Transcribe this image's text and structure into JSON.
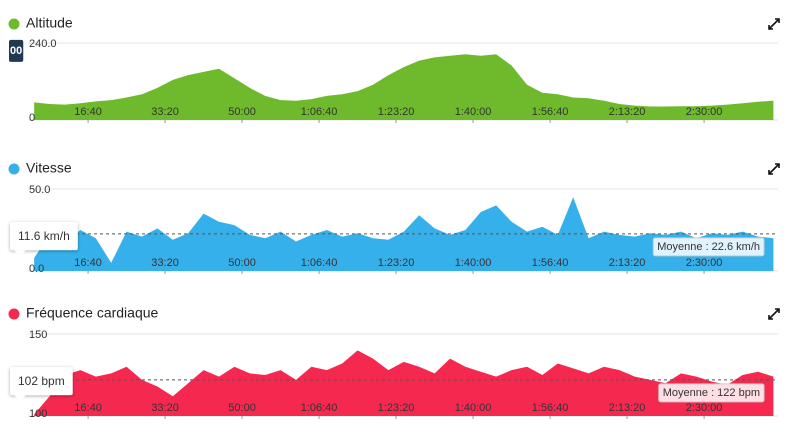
{
  "chart_data": [
    {
      "type": "area",
      "title": "Altitude",
      "color": "#6fba2c",
      "cursor_label": "00",
      "x": [
        300,
        500,
        700,
        900,
        1100,
        1300,
        1500,
        1700,
        1900,
        2100,
        2300,
        2500,
        2700,
        2900,
        3100,
        3300,
        3500,
        3700,
        3900,
        4100,
        4300,
        4500,
        4700,
        4900,
        5100,
        5300,
        5500,
        5700,
        5900,
        6100,
        6300,
        6500,
        6700,
        6900,
        7100,
        7300,
        7500,
        7700,
        7900,
        8100,
        8300,
        8500,
        8700,
        8900,
        9100,
        9300,
        9500,
        9700,
        9900
      ],
      "values": [
        55,
        50,
        48,
        52,
        58,
        62,
        70,
        80,
        100,
        125,
        140,
        150,
        160,
        130,
        100,
        75,
        62,
        60,
        65,
        75,
        80,
        90,
        110,
        140,
        165,
        185,
        195,
        200,
        205,
        200,
        205,
        170,
        110,
        85,
        80,
        70,
        68,
        60,
        50,
        45,
        42,
        42,
        43,
        43,
        45,
        48,
        52,
        57,
        60
      ],
      "xlim": [
        220,
        9960
      ],
      "xticks": [
        {
          "value": 1000,
          "label": "16:40"
        },
        {
          "value": 2000,
          "label": "33:20"
        },
        {
          "value": 3000,
          "label": "50:00"
        },
        {
          "value": 4000,
          "label": "1:06:40"
        },
        {
          "value": 5000,
          "label": "1:23:20"
        },
        {
          "value": 6000,
          "label": "1:40:00"
        },
        {
          "value": 7000,
          "label": "1:56:40"
        },
        {
          "value": 8000,
          "label": "2:13:20"
        },
        {
          "value": 9000,
          "label": "2:30:00"
        }
      ],
      "ylim": [
        0,
        240
      ],
      "yticks": [
        0,
        {
          "value": 240,
          "label": "240.0"
        }
      ],
      "grid": true
    },
    {
      "type": "area",
      "title": "Vitesse",
      "color": "#35b0ea",
      "cursor_label": "11.6 km/h",
      "average": {
        "value": 22.6,
        "label": "Moyenne : 22.6 km/h"
      },
      "x": [
        300,
        500,
        700,
        900,
        1100,
        1300,
        1500,
        1700,
        1900,
        2100,
        2300,
        2500,
        2700,
        2900,
        3100,
        3300,
        3500,
        3700,
        3900,
        4100,
        4300,
        4500,
        4700,
        4900,
        5100,
        5300,
        5500,
        5700,
        5900,
        6100,
        6300,
        6500,
        6700,
        6900,
        7100,
        7300,
        7500,
        7700,
        7900,
        8100,
        8300,
        8500,
        8700,
        8900,
        9100,
        9300,
        9500,
        9700,
        9900
      ],
      "values": [
        8,
        22,
        18,
        25,
        20,
        5,
        24,
        21,
        26,
        19,
        23,
        35,
        30,
        28,
        22,
        20,
        24,
        18,
        22,
        25,
        21,
        23,
        20,
        19,
        24,
        34,
        26,
        22,
        25,
        36,
        40,
        30,
        24,
        27,
        22,
        45,
        20,
        24,
        22,
        21,
        23,
        22,
        24,
        20,
        23,
        22,
        24,
        21,
        20
      ],
      "xlim": [
        220,
        9960
      ],
      "xticks": [
        {
          "value": 1000,
          "label": "16:40"
        },
        {
          "value": 2000,
          "label": "33:20"
        },
        {
          "value": 3000,
          "label": "50:00"
        },
        {
          "value": 4000,
          "label": "1:06:40"
        },
        {
          "value": 5000,
          "label": "1:23:20"
        },
        {
          "value": 6000,
          "label": "1:40:00"
        },
        {
          "value": 7000,
          "label": "1:56:40"
        },
        {
          "value": 8000,
          "label": "2:13:20"
        },
        {
          "value": 9000,
          "label": "2:30:00"
        }
      ],
      "ylim": [
        0,
        50
      ],
      "yticks": [
        {
          "value": 0,
          "label": "0.0"
        },
        {
          "value": 50,
          "label": "50.0"
        }
      ],
      "grid": true
    },
    {
      "type": "area",
      "title": "Fréquence cardiaque",
      "color": "#f5294f",
      "cursor_label": "102 bpm",
      "average": {
        "value": 122,
        "label": "Moyenne : 122 bpm"
      },
      "x": [
        300,
        500,
        700,
        900,
        1100,
        1300,
        1500,
        1700,
        1900,
        2100,
        2300,
        2500,
        2700,
        2900,
        3100,
        3300,
        3500,
        3700,
        3900,
        4100,
        4300,
        4500,
        4700,
        4900,
        5100,
        5300,
        5500,
        5700,
        5900,
        6100,
        6300,
        6500,
        6700,
        6900,
        7100,
        7300,
        7500,
        7700,
        7900,
        8100,
        8300,
        8500,
        8700,
        8900,
        9100,
        9300,
        9500,
        9700,
        9900
      ],
      "values": [
        101,
        112,
        125,
        128,
        124,
        126,
        130,
        122,
        118,
        112,
        120,
        128,
        124,
        130,
        126,
        125,
        128,
        122,
        130,
        128,
        132,
        140,
        135,
        128,
        133,
        130,
        126,
        135,
        130,
        127,
        124,
        128,
        130,
        125,
        132,
        129,
        126,
        130,
        128,
        124,
        122,
        120,
        126,
        124,
        121,
        119,
        125,
        127,
        124
      ],
      "xlim": [
        220,
        9960
      ],
      "xticks": [
        {
          "value": 1000,
          "label": "16:40"
        },
        {
          "value": 2000,
          "label": "33:20"
        },
        {
          "value": 3000,
          "label": "50:00"
        },
        {
          "value": 4000,
          "label": "1:06:40"
        },
        {
          "value": 5000,
          "label": "1:23:20"
        },
        {
          "value": 6000,
          "label": "1:40:00"
        },
        {
          "value": 7000,
          "label": "1:56:40"
        },
        {
          "value": 8000,
          "label": "2:13:20"
        },
        {
          "value": 9000,
          "label": "2:30:00"
        }
      ],
      "ylim": [
        100,
        150
      ],
      "yticks": [
        100,
        150
      ],
      "grid": true
    }
  ]
}
